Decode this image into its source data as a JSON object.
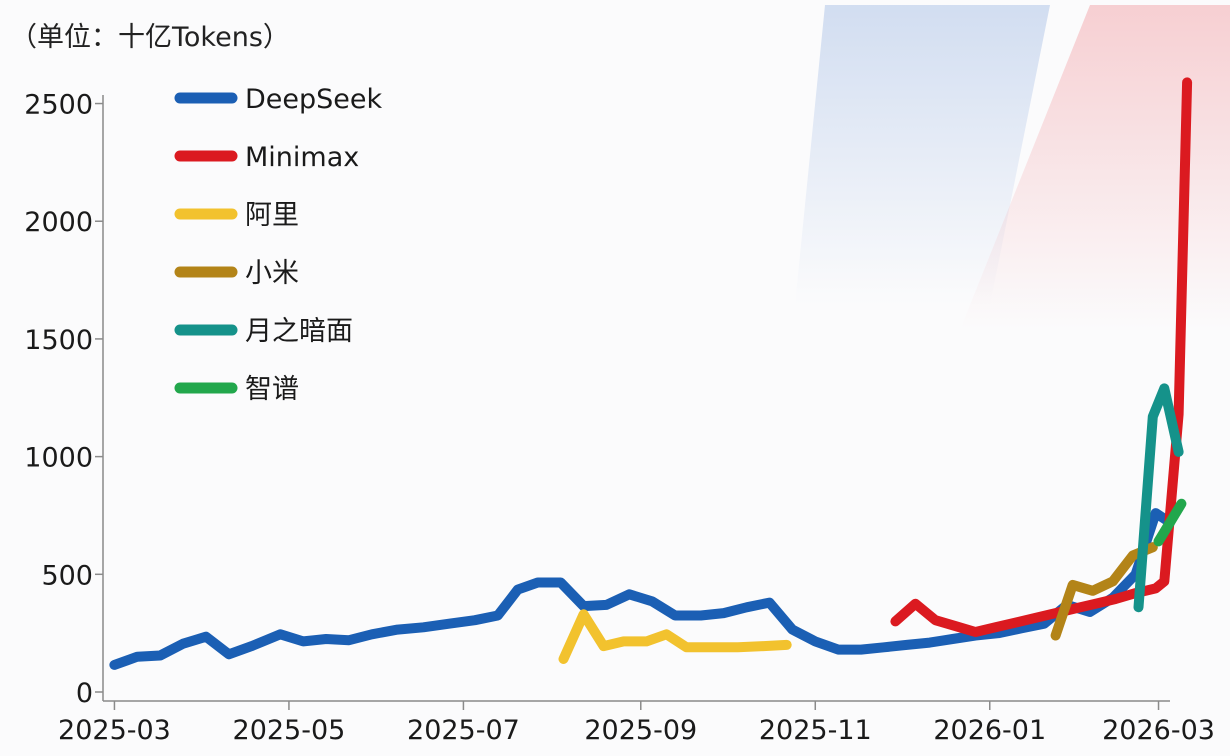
{
  "unit_label": "（单位：十亿Tokens）",
  "colors": {
    "DeepSeek": "#1b5fb4",
    "Minimax": "#db1a20",
    "阿里": "#f2c22e",
    "小米": "#b38418",
    "月之暗面": "#15928a",
    "智谱": "#22a74c"
  },
  "chart_data": {
    "type": "line",
    "title": "",
    "xlabel": "",
    "ylabel": "",
    "ylim": [
      0,
      2600
    ],
    "xlim": [
      "2025-02-25",
      "2026-03-12"
    ],
    "y_ticks": [
      0,
      500,
      1000,
      1500,
      2000,
      2500
    ],
    "x_ticks": [
      "2025-03",
      "2025-05",
      "2025-07",
      "2025-09",
      "2025-11",
      "2026-01",
      "2026-03"
    ],
    "legend_position": "top-left",
    "grid": false,
    "series": [
      {
        "name": "DeepSeek",
        "points": [
          [
            "2025-03-01",
            115
          ],
          [
            "2025-03-09",
            150
          ],
          [
            "2025-03-17",
            155
          ],
          [
            "2025-03-25",
            205
          ],
          [
            "2025-04-02",
            235
          ],
          [
            "2025-04-10",
            160
          ],
          [
            "2025-04-18",
            195
          ],
          [
            "2025-04-28",
            245
          ],
          [
            "2025-05-06",
            215
          ],
          [
            "2025-05-14",
            225
          ],
          [
            "2025-05-22",
            220
          ],
          [
            "2025-05-30",
            245
          ],
          [
            "2025-06-08",
            265
          ],
          [
            "2025-06-17",
            275
          ],
          [
            "2025-06-26",
            290
          ],
          [
            "2025-07-05",
            305
          ],
          [
            "2025-07-13",
            325
          ],
          [
            "2025-07-20",
            435
          ],
          [
            "2025-07-27",
            465
          ],
          [
            "2025-08-04",
            465
          ],
          [
            "2025-08-12",
            365
          ],
          [
            "2025-08-20",
            370
          ],
          [
            "2025-08-28",
            415
          ],
          [
            "2025-09-05",
            385
          ],
          [
            "2025-09-13",
            325
          ],
          [
            "2025-09-22",
            325
          ],
          [
            "2025-09-30",
            335
          ],
          [
            "2025-10-08",
            360
          ],
          [
            "2025-10-16",
            380
          ],
          [
            "2025-10-24",
            265
          ],
          [
            "2025-11-01",
            215
          ],
          [
            "2025-11-09",
            180
          ],
          [
            "2025-11-17",
            180
          ],
          [
            "2025-11-25",
            190
          ],
          [
            "2025-12-03",
            200
          ],
          [
            "2025-12-11",
            210
          ],
          [
            "2025-12-19",
            225
          ],
          [
            "2025-12-27",
            240
          ],
          [
            "2026-01-04",
            250
          ],
          [
            "2026-01-12",
            270
          ],
          [
            "2026-01-20",
            290
          ],
          [
            "2026-01-28",
            370
          ],
          [
            "2026-02-05",
            340
          ],
          [
            "2026-02-13",
            400
          ],
          [
            "2026-02-21",
            500
          ],
          [
            "2026-02-28",
            760
          ],
          [
            "2026-03-05",
            720
          ]
        ]
      },
      {
        "name": "Minimax",
        "points": [
          [
            "2025-11-29",
            300
          ],
          [
            "2025-12-06",
            375
          ],
          [
            "2025-12-13",
            305
          ],
          [
            "2025-12-20",
            280
          ],
          [
            "2025-12-27",
            255
          ],
          [
            "2026-01-03",
            275
          ],
          [
            "2026-01-10",
            295
          ],
          [
            "2026-01-17",
            315
          ],
          [
            "2026-01-24",
            335
          ],
          [
            "2026-01-31",
            355
          ],
          [
            "2026-02-07",
            375
          ],
          [
            "2026-02-14",
            395
          ],
          [
            "2026-02-21",
            420
          ],
          [
            "2026-02-28",
            440
          ],
          [
            "2026-03-03",
            470
          ],
          [
            "2026-03-08",
            1180
          ],
          [
            "2026-03-11",
            2590
          ]
        ]
      },
      {
        "name": "阿里",
        "points": [
          [
            "2025-08-05",
            140
          ],
          [
            "2025-08-12",
            330
          ],
          [
            "2025-08-19",
            195
          ],
          [
            "2025-08-26",
            215
          ],
          [
            "2025-09-03",
            215
          ],
          [
            "2025-09-10",
            245
          ],
          [
            "2025-09-17",
            190
          ],
          [
            "2025-09-26",
            190
          ],
          [
            "2025-10-05",
            190
          ],
          [
            "2025-10-14",
            195
          ],
          [
            "2025-10-22",
            200
          ]
        ]
      },
      {
        "name": "小米",
        "points": [
          [
            "2026-01-24",
            240
          ],
          [
            "2026-01-30",
            455
          ],
          [
            "2026-02-06",
            430
          ],
          [
            "2026-02-13",
            470
          ],
          [
            "2026-02-20",
            580
          ],
          [
            "2026-02-27",
            615
          ]
        ]
      },
      {
        "name": "月之暗面",
        "points": [
          [
            "2026-02-22",
            360
          ],
          [
            "2026-02-27",
            1170
          ],
          [
            "2026-03-03",
            1290
          ],
          [
            "2026-03-08",
            1020
          ]
        ]
      },
      {
        "name": "智谱",
        "points": [
          [
            "2026-03-01",
            640
          ],
          [
            "2026-03-05",
            720
          ],
          [
            "2026-03-09",
            800
          ]
        ]
      }
    ]
  }
}
